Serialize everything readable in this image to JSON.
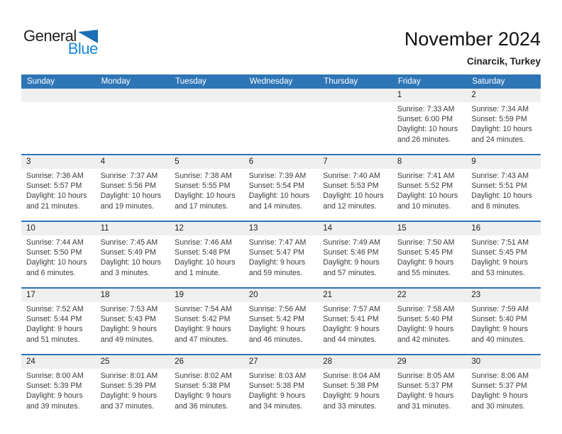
{
  "logo": {
    "part1": "General",
    "part2": "Blue"
  },
  "header": {
    "title": "November 2024",
    "subtitle": "Cinarcik, Turkey"
  },
  "colors": {
    "header_bar_blue": "#2e75b6",
    "week_divider_blue": "#2e75b6",
    "day_number_band_gray": "#efefef",
    "logo_text_blue": "#1787d8",
    "logo_triangle_blue": "#1a6fb5",
    "body_text": "#3c3c3c"
  },
  "calendar": {
    "weekdays": [
      "Sunday",
      "Monday",
      "Tuesday",
      "Wednesday",
      "Thursday",
      "Friday",
      "Saturday"
    ],
    "weeks": [
      [
        null,
        null,
        null,
        null,
        null,
        {
          "date": "1",
          "sunrise": "Sunrise: 7:33 AM",
          "sunset": "Sunset: 6:00 PM",
          "daylight_line1": "Daylight: 10 hours",
          "daylight_line2": "and 26 minutes."
        },
        {
          "date": "2",
          "sunrise": "Sunrise: 7:34 AM",
          "sunset": "Sunset: 5:59 PM",
          "daylight_line1": "Daylight: 10 hours",
          "daylight_line2": "and 24 minutes."
        }
      ],
      [
        {
          "date": "3",
          "sunrise": "Sunrise: 7:36 AM",
          "sunset": "Sunset: 5:57 PM",
          "daylight_line1": "Daylight: 10 hours",
          "daylight_line2": "and 21 minutes."
        },
        {
          "date": "4",
          "sunrise": "Sunrise: 7:37 AM",
          "sunset": "Sunset: 5:56 PM",
          "daylight_line1": "Daylight: 10 hours",
          "daylight_line2": "and 19 minutes."
        },
        {
          "date": "5",
          "sunrise": "Sunrise: 7:38 AM",
          "sunset": "Sunset: 5:55 PM",
          "daylight_line1": "Daylight: 10 hours",
          "daylight_line2": "and 17 minutes."
        },
        {
          "date": "6",
          "sunrise": "Sunrise: 7:39 AM",
          "sunset": "Sunset: 5:54 PM",
          "daylight_line1": "Daylight: 10 hours",
          "daylight_line2": "and 14 minutes."
        },
        {
          "date": "7",
          "sunrise": "Sunrise: 7:40 AM",
          "sunset": "Sunset: 5:53 PM",
          "daylight_line1": "Daylight: 10 hours",
          "daylight_line2": "and 12 minutes."
        },
        {
          "date": "8",
          "sunrise": "Sunrise: 7:41 AM",
          "sunset": "Sunset: 5:52 PM",
          "daylight_line1": "Daylight: 10 hours",
          "daylight_line2": "and 10 minutes."
        },
        {
          "date": "9",
          "sunrise": "Sunrise: 7:43 AM",
          "sunset": "Sunset: 5:51 PM",
          "daylight_line1": "Daylight: 10 hours",
          "daylight_line2": "and 8 minutes."
        }
      ],
      [
        {
          "date": "10",
          "sunrise": "Sunrise: 7:44 AM",
          "sunset": "Sunset: 5:50 PM",
          "daylight_line1": "Daylight: 10 hours",
          "daylight_line2": "and 6 minutes."
        },
        {
          "date": "11",
          "sunrise": "Sunrise: 7:45 AM",
          "sunset": "Sunset: 5:49 PM",
          "daylight_line1": "Daylight: 10 hours",
          "daylight_line2": "and 3 minutes."
        },
        {
          "date": "12",
          "sunrise": "Sunrise: 7:46 AM",
          "sunset": "Sunset: 5:48 PM",
          "daylight_line1": "Daylight: 10 hours",
          "daylight_line2": "and 1 minute."
        },
        {
          "date": "13",
          "sunrise": "Sunrise: 7:47 AM",
          "sunset": "Sunset: 5:47 PM",
          "daylight_line1": "Daylight: 9 hours",
          "daylight_line2": "and 59 minutes."
        },
        {
          "date": "14",
          "sunrise": "Sunrise: 7:49 AM",
          "sunset": "Sunset: 5:46 PM",
          "daylight_line1": "Daylight: 9 hours",
          "daylight_line2": "and 57 minutes."
        },
        {
          "date": "15",
          "sunrise": "Sunrise: 7:50 AM",
          "sunset": "Sunset: 5:45 PM",
          "daylight_line1": "Daylight: 9 hours",
          "daylight_line2": "and 55 minutes."
        },
        {
          "date": "16",
          "sunrise": "Sunrise: 7:51 AM",
          "sunset": "Sunset: 5:45 PM",
          "daylight_line1": "Daylight: 9 hours",
          "daylight_line2": "and 53 minutes."
        }
      ],
      [
        {
          "date": "17",
          "sunrise": "Sunrise: 7:52 AM",
          "sunset": "Sunset: 5:44 PM",
          "daylight_line1": "Daylight: 9 hours",
          "daylight_line2": "and 51 minutes."
        },
        {
          "date": "18",
          "sunrise": "Sunrise: 7:53 AM",
          "sunset": "Sunset: 5:43 PM",
          "daylight_line1": "Daylight: 9 hours",
          "daylight_line2": "and 49 minutes."
        },
        {
          "date": "19",
          "sunrise": "Sunrise: 7:54 AM",
          "sunset": "Sunset: 5:42 PM",
          "daylight_line1": "Daylight: 9 hours",
          "daylight_line2": "and 47 minutes."
        },
        {
          "date": "20",
          "sunrise": "Sunrise: 7:56 AM",
          "sunset": "Sunset: 5:42 PM",
          "daylight_line1": "Daylight: 9 hours",
          "daylight_line2": "and 46 minutes."
        },
        {
          "date": "21",
          "sunrise": "Sunrise: 7:57 AM",
          "sunset": "Sunset: 5:41 PM",
          "daylight_line1": "Daylight: 9 hours",
          "daylight_line2": "and 44 minutes."
        },
        {
          "date": "22",
          "sunrise": "Sunrise: 7:58 AM",
          "sunset": "Sunset: 5:40 PM",
          "daylight_line1": "Daylight: 9 hours",
          "daylight_line2": "and 42 minutes."
        },
        {
          "date": "23",
          "sunrise": "Sunrise: 7:59 AM",
          "sunset": "Sunset: 5:40 PM",
          "daylight_line1": "Daylight: 9 hours",
          "daylight_line2": "and 40 minutes."
        }
      ],
      [
        {
          "date": "24",
          "sunrise": "Sunrise: 8:00 AM",
          "sunset": "Sunset: 5:39 PM",
          "daylight_line1": "Daylight: 9 hours",
          "daylight_line2": "and 39 minutes."
        },
        {
          "date": "25",
          "sunrise": "Sunrise: 8:01 AM",
          "sunset": "Sunset: 5:39 PM",
          "daylight_line1": "Daylight: 9 hours",
          "daylight_line2": "and 37 minutes."
        },
        {
          "date": "26",
          "sunrise": "Sunrise: 8:02 AM",
          "sunset": "Sunset: 5:38 PM",
          "daylight_line1": "Daylight: 9 hours",
          "daylight_line2": "and 36 minutes."
        },
        {
          "date": "27",
          "sunrise": "Sunrise: 8:03 AM",
          "sunset": "Sunset: 5:38 PM",
          "daylight_line1": "Daylight: 9 hours",
          "daylight_line2": "and 34 minutes."
        },
        {
          "date": "28",
          "sunrise": "Sunrise: 8:04 AM",
          "sunset": "Sunset: 5:38 PM",
          "daylight_line1": "Daylight: 9 hours",
          "daylight_line2": "and 33 minutes."
        },
        {
          "date": "29",
          "sunrise": "Sunrise: 8:05 AM",
          "sunset": "Sunset: 5:37 PM",
          "daylight_line1": "Daylight: 9 hours",
          "daylight_line2": "and 31 minutes."
        },
        {
          "date": "30",
          "sunrise": "Sunrise: 8:06 AM",
          "sunset": "Sunset: 5:37 PM",
          "daylight_line1": "Daylight: 9 hours",
          "daylight_line2": "and 30 minutes."
        }
      ]
    ]
  }
}
